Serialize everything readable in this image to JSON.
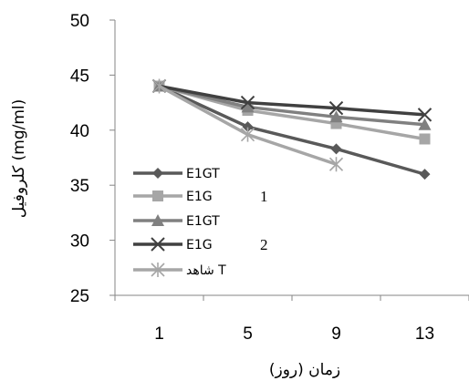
{
  "chart_data": {
    "type": "line",
    "title": "",
    "xlabel": "زمان (روز)",
    "ylabel": "کلروفیل (mg/ml)",
    "x": [
      1,
      5,
      9,
      13
    ],
    "categories": [
      "1",
      "5",
      "9",
      "13"
    ],
    "ylim": [
      25,
      50
    ],
    "yticks": [
      25,
      30,
      35,
      40,
      45,
      50
    ],
    "grid": false,
    "legend_position": "left-bottom",
    "series": [
      {
        "name": "E1GT",
        "marker": "diamond",
        "color": "#595959",
        "values": [
          44,
          40.3,
          38.3,
          36
        ]
      },
      {
        "name": "E1G",
        "marker": "square",
        "color": "#a6a6a6",
        "values": [
          44,
          41.8,
          40.6,
          39.2
        ]
      },
      {
        "name": "E1GT",
        "marker": "triangle",
        "color": "#808080",
        "values": [
          44,
          42.1,
          41.2,
          40.5
        ]
      },
      {
        "name": "E1G",
        "marker": "x",
        "color": "#404040",
        "values": [
          44,
          42.5,
          42,
          41.4
        ]
      },
      {
        "name": "شاهد T",
        "marker": "star",
        "color": "#a6a6a6",
        "values": [
          44,
          39.6,
          36.9,
          null
        ]
      }
    ],
    "legend_annotations": [
      "1",
      "2"
    ]
  }
}
